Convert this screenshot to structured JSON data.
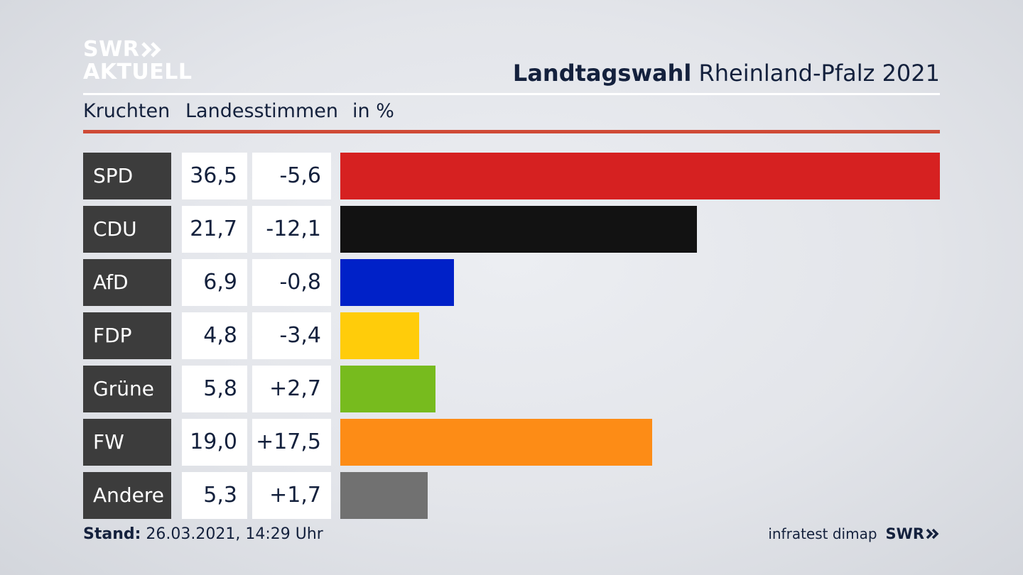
{
  "header": {
    "logo_line1": "SWR",
    "logo_line2": "AKTUELL",
    "title_bold": "Landtagswahl",
    "title_rest": "Rheinland-Pfalz 2021",
    "sub_kruchten": "Kruchten",
    "sub_landesstimmen": "Landesstimmen",
    "sub_unit": "in %"
  },
  "chart_data": {
    "type": "bar",
    "orientation": "horizontal",
    "title": "Landtagswahl Rheinland-Pfalz 2021",
    "subtitle": "Kruchten Landesstimmen in %",
    "xlim": [
      0,
      36.5
    ],
    "rows": [
      {
        "party": "SPD",
        "value": 36.5,
        "value_label": "36,5",
        "diff_label": "-5,6",
        "color": "#d62121"
      },
      {
        "party": "CDU",
        "value": 21.7,
        "value_label": "21,7",
        "diff_label": "-12,1",
        "color": "#121212"
      },
      {
        "party": "AfD",
        "value": 6.9,
        "value_label": "6,9",
        "diff_label": "-0,8",
        "color": "#0021c8"
      },
      {
        "party": "FDP",
        "value": 4.8,
        "value_label": "4,8",
        "diff_label": "-3,4",
        "color": "#ffcc0a"
      },
      {
        "party": "Grüne",
        "value": 5.8,
        "value_label": "5,8",
        "diff_label": "+2,7",
        "color": "#77bb1e"
      },
      {
        "party": "FW",
        "value": 19.0,
        "value_label": "19,0",
        "diff_label": "+17,5",
        "color": "#fd8c16"
      },
      {
        "party": "Andere",
        "value": 5.3,
        "value_label": "5,3",
        "diff_label": "+1,7",
        "color": "#717171"
      }
    ]
  },
  "footer": {
    "stand_label": "Stand:",
    "stand_value": "26.03.2021, 14:29 Uhr",
    "source": "infratest dimap",
    "brand": "SWR"
  }
}
